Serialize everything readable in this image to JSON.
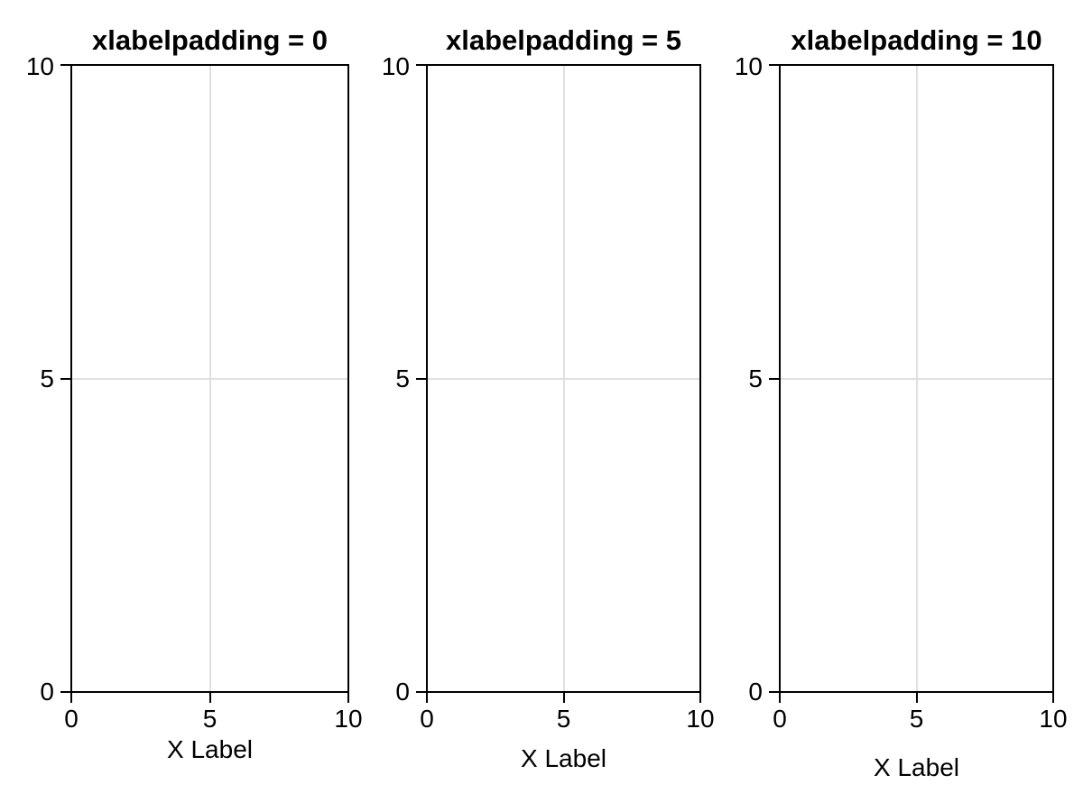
{
  "figure": {
    "background_color": "#ffffff",
    "axis_color": "#000000",
    "grid_color": "#e0e0e0",
    "text_color": "#000000"
  },
  "panels": [
    {
      "title": "xlabelpadding = 0",
      "xlabel": "X Label",
      "x_ticks": [
        "0",
        "5",
        "10"
      ],
      "y_ticks": [
        "0",
        "5",
        "10"
      ]
    },
    {
      "title": "xlabelpadding = 5",
      "xlabel": "X Label",
      "x_ticks": [
        "0",
        "5",
        "10"
      ],
      "y_ticks": [
        "0",
        "5",
        "10"
      ]
    },
    {
      "title": "xlabelpadding = 10",
      "xlabel": "X Label",
      "x_ticks": [
        "0",
        "5",
        "10"
      ],
      "y_ticks": [
        "0",
        "5",
        "10"
      ]
    }
  ],
  "chart_data": [
    {
      "type": "scatter",
      "title": "xlabelpadding = 0",
      "xlabel": "X Label",
      "ylabel": "",
      "xlim": [
        0,
        10
      ],
      "ylim": [
        0,
        10
      ],
      "xticks": [
        0,
        5,
        10
      ],
      "yticks": [
        0,
        5,
        10
      ],
      "grid": true,
      "xlabelpadding": 0,
      "series": []
    },
    {
      "type": "scatter",
      "title": "xlabelpadding = 5",
      "xlabel": "X Label",
      "ylabel": "",
      "xlim": [
        0,
        10
      ],
      "ylim": [
        0,
        10
      ],
      "xticks": [
        0,
        5,
        10
      ],
      "yticks": [
        0,
        5,
        10
      ],
      "grid": true,
      "xlabelpadding": 5,
      "series": []
    },
    {
      "type": "scatter",
      "title": "xlabelpadding = 10",
      "xlabel": "X Label",
      "ylabel": "",
      "xlim": [
        0,
        10
      ],
      "ylim": [
        0,
        10
      ],
      "xticks": [
        0,
        5,
        10
      ],
      "yticks": [
        0,
        5,
        10
      ],
      "grid": true,
      "xlabelpadding": 10,
      "series": []
    }
  ]
}
